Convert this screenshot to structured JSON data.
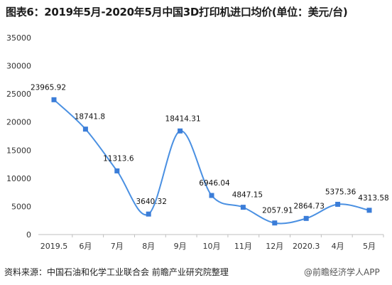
{
  "title": "图表6：2019年5月-2020年5月中国3D打印机进口均价(单位：美元/台)",
  "footer": {
    "source": "资料来源：中国石油和化学工业联合会 前瞻产业研究院整理",
    "brand": "@前瞻经济学人APP"
  },
  "colors": {
    "line": "#4a90e2",
    "marker": "#3b7dd8",
    "axis": "#bfbfbf"
  },
  "chart_data": {
    "type": "line",
    "categories": [
      "2019.5",
      "6月",
      "7月",
      "8月",
      "9月",
      "10月",
      "11月",
      "12月",
      "2020.3",
      "4月",
      "5月"
    ],
    "values": [
      23965.92,
      18741.8,
      11313.6,
      3640.32,
      18414.31,
      6946.04,
      4847.15,
      2057.91,
      2864.73,
      5375.36,
      4313.58
    ],
    "data_labels": [
      "23965.92",
      "18741.8",
      "11313.6",
      "3640.32",
      "18414.31",
      "6946.04",
      "4847.15",
      "2057.91",
      "2864.73",
      "5375.36",
      "4313.58"
    ],
    "yticks": [
      "0",
      "5000",
      "10000",
      "15000",
      "20000",
      "25000",
      "30000",
      "35000"
    ],
    "ylim": [
      0,
      35000
    ],
    "smooth": true,
    "grid": false,
    "legend": "none"
  }
}
